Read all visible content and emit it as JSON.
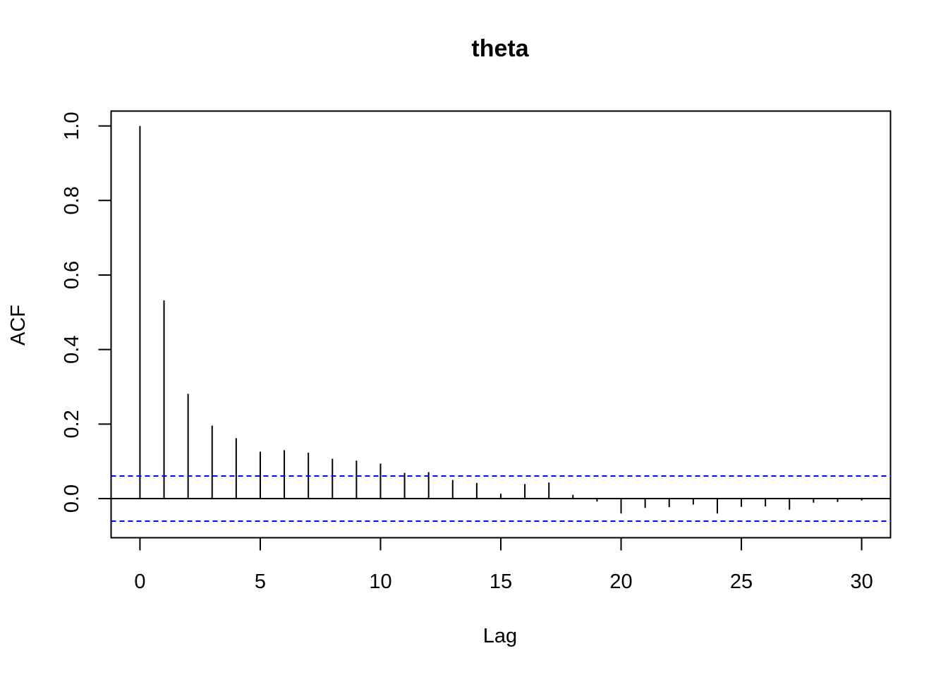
{
  "chart_data": {
    "type": "bar",
    "title": "theta",
    "xlabel": "Lag",
    "ylabel": "ACF",
    "x": [
      0,
      1,
      2,
      3,
      4,
      5,
      6,
      7,
      8,
      9,
      10,
      11,
      12,
      13,
      14,
      15,
      16,
      17,
      18,
      19,
      20,
      21,
      22,
      23,
      24,
      25,
      26,
      27,
      28,
      29,
      30
    ],
    "values": [
      1.0,
      0.532,
      0.281,
      0.196,
      0.162,
      0.126,
      0.13,
      0.123,
      0.107,
      0.102,
      0.094,
      0.069,
      0.071,
      0.05,
      0.042,
      0.013,
      0.039,
      0.043,
      0.01,
      -0.008,
      -0.04,
      -0.025,
      -0.023,
      -0.016,
      -0.04,
      -0.022,
      -0.021,
      -0.03,
      -0.011,
      -0.009,
      -0.005
    ],
    "confidence_band": 0.0605,
    "xlim": [
      -1.2,
      31.2
    ],
    "ylim": [
      -0.105,
      1.04
    ],
    "x_ticks": [
      "0",
      "5",
      "10",
      "15",
      "20",
      "25",
      "30"
    ],
    "y_ticks": [
      "0.0",
      "0.2",
      "0.4",
      "0.6",
      "0.8",
      "1.0"
    ],
    "grid": false,
    "colors": {
      "bars": "#000000",
      "confidence_band": "#0000ff",
      "frame": "#000000"
    }
  }
}
